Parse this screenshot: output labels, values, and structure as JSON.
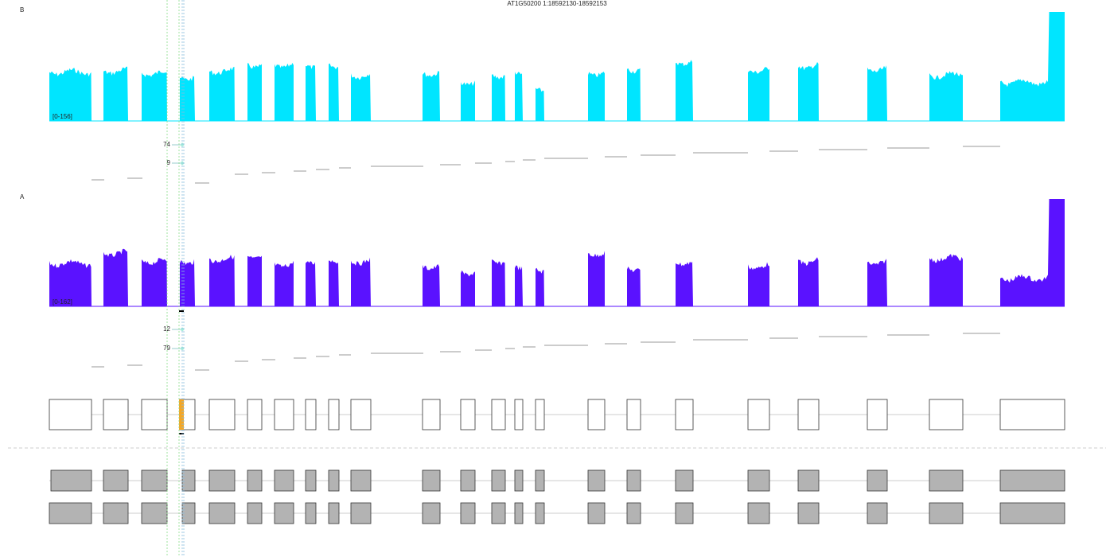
{
  "title": "AT1G50200 1:18592130-18592153",
  "tracks": [
    {
      "label": "B",
      "range": "[0-156]",
      "color": "#00e5ff",
      "junctions": [
        "74",
        "9"
      ]
    },
    {
      "label": "A",
      "range": "[0-162]",
      "color": "#5a12ff",
      "junctions": [
        "12",
        "79"
      ]
    }
  ]
}
